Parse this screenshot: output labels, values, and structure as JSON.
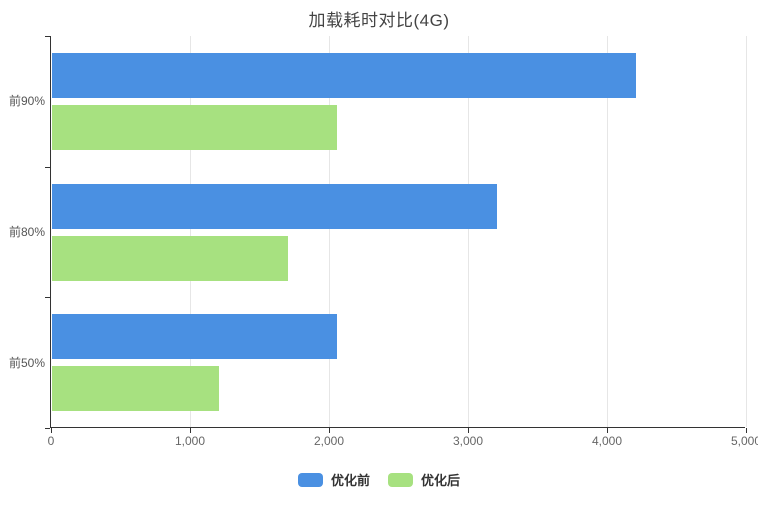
{
  "title": "加载耗时对比(4G)",
  "colors": {
    "series_before": "#4a90e2",
    "series_after": "#a7e180",
    "axis_line": "#333333",
    "gridline": "#e6e6e6",
    "tick_label": "#666666",
    "category_label": "#555555",
    "title_text": "#444444",
    "legend_text": "#333333",
    "background": "#ffffff"
  },
  "chart_data": {
    "type": "bar",
    "orientation": "horizontal",
    "title": "加载耗时对比(4G)",
    "categories": [
      "前90%",
      "前80%",
      "前50%"
    ],
    "series": [
      {
        "name": "优化前",
        "color": "#4a90e2",
        "values": [
          4200,
          3200,
          2050
        ]
      },
      {
        "name": "优化后",
        "color": "#a7e180",
        "values": [
          2050,
          1700,
          1200
        ]
      }
    ],
    "xlabel": "",
    "ylabel": "",
    "xlim": [
      0,
      5000
    ],
    "x_ticks": [
      0,
      1000,
      2000,
      3000,
      4000,
      5000
    ],
    "x_tick_labels": [
      "0",
      "1,000",
      "2,000",
      "3,000",
      "4,000",
      "5,000"
    ],
    "grid": true,
    "legend_position": "bottom"
  },
  "legend": {
    "items": [
      {
        "label": "优化前",
        "color": "#4a90e2"
      },
      {
        "label": "优化后",
        "color": "#a7e180"
      }
    ]
  }
}
